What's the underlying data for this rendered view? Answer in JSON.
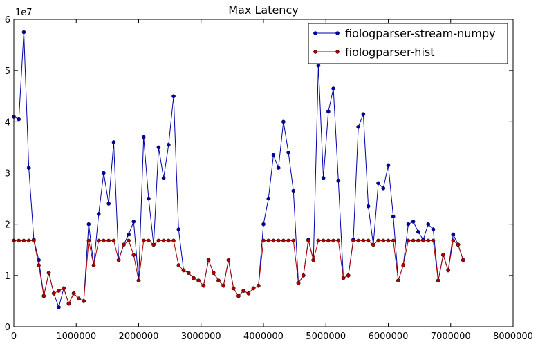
{
  "chart_data": {
    "type": "line",
    "title": "Max Latency",
    "xlabel": "",
    "ylabel": "",
    "xlim": [
      0,
      8000000
    ],
    "ylim": [
      0,
      60000000
    ],
    "x_ticks": [
      0,
      1000000,
      2000000,
      3000000,
      4000000,
      5000000,
      6000000,
      7000000,
      8000000
    ],
    "x_tick_labels": [
      "0",
      "1000000",
      "2000000",
      "3000000",
      "4000000",
      "5000000",
      "6000000",
      "7000000",
      "8000000"
    ],
    "y_ticks": [
      0,
      10000000,
      20000000,
      30000000,
      40000000,
      50000000,
      60000000
    ],
    "y_tick_labels": [
      "0",
      "1",
      "2",
      "3",
      "4",
      "5",
      "6"
    ],
    "y_offset_label": "1e7",
    "grid": false,
    "legend_position": "top-right",
    "series": [
      {
        "name": "fiologparser-stream-numpy",
        "color": "#0000aa",
        "x": [
          0,
          80000,
          160000,
          240000,
          320000,
          400000,
          480000,
          560000,
          640000,
          720000,
          800000,
          880000,
          960000,
          1040000,
          1120000,
          1200000,
          1280000,
          1360000,
          1440000,
          1520000,
          1600000,
          1680000,
          1760000,
          1840000,
          1920000,
          2000000,
          2080000,
          2160000,
          2240000,
          2320000,
          2400000,
          2480000,
          2560000,
          2640000,
          2720000,
          2800000,
          2880000,
          2960000,
          3040000,
          3120000,
          3200000,
          3280000,
          3360000,
          3440000,
          3520000,
          3600000,
          3680000,
          3760000,
          3840000,
          3920000,
          4000000,
          4080000,
          4160000,
          4240000,
          4320000,
          4400000,
          4480000,
          4560000,
          4640000,
          4720000,
          4800000,
          4880000,
          4960000,
          5040000,
          5120000,
          5200000,
          5280000,
          5360000,
          5440000,
          5520000,
          5600000,
          5680000,
          5760000,
          5840000,
          5920000,
          6000000,
          6080000,
          6160000,
          6240000,
          6320000,
          6400000,
          6480000,
          6560000,
          6640000,
          6720000,
          6800000,
          6880000,
          6960000,
          7040000,
          7120000,
          7200000
        ],
        "y": [
          41000000,
          40500000,
          57500000,
          31000000,
          17000000,
          13000000,
          6000000,
          10500000,
          6500000,
          3800000,
          7500000,
          4500000,
          6500000,
          5500000,
          5000000,
          20000000,
          12000000,
          22000000,
          30000000,
          24000000,
          36000000,
          13000000,
          16000000,
          18000000,
          20500000,
          9000000,
          37000000,
          25000000,
          16000000,
          35000000,
          29000000,
          35500000,
          45000000,
          19000000,
          11000000,
          10500000,
          9500000,
          9000000,
          8000000,
          13000000,
          10500000,
          9000000,
          8000000,
          13000000,
          7500000,
          6000000,
          7000000,
          6500000,
          7500000,
          8000000,
          20000000,
          25000000,
          33500000,
          31000000,
          40000000,
          34000000,
          26500000,
          8500000,
          10000000,
          17000000,
          13000000,
          51000000,
          29000000,
          42000000,
          46500000,
          28500000,
          9500000,
          10000000,
          17000000,
          39000000,
          41500000,
          23500000,
          16000000,
          28000000,
          27000000,
          31500000,
          21500000,
          9000000,
          12000000,
          20000000,
          20500000,
          18500000,
          17000000,
          20000000,
          19000000,
          9000000,
          14000000,
          11000000,
          18000000,
          16000000,
          13000000
        ]
      },
      {
        "name": "fiologparser-hist",
        "color": "#aa0000",
        "x": [
          0,
          80000,
          160000,
          240000,
          320000,
          400000,
          480000,
          560000,
          640000,
          720000,
          800000,
          880000,
          960000,
          1040000,
          1120000,
          1200000,
          1280000,
          1360000,
          1440000,
          1520000,
          1600000,
          1680000,
          1760000,
          1840000,
          1920000,
          2000000,
          2080000,
          2160000,
          2240000,
          2320000,
          2400000,
          2480000,
          2560000,
          2640000,
          2720000,
          2800000,
          2880000,
          2960000,
          3040000,
          3120000,
          3200000,
          3280000,
          3360000,
          3440000,
          3520000,
          3600000,
          3680000,
          3760000,
          3840000,
          3920000,
          4000000,
          4080000,
          4160000,
          4240000,
          4320000,
          4400000,
          4480000,
          4560000,
          4640000,
          4720000,
          4800000,
          4880000,
          4960000,
          5040000,
          5120000,
          5200000,
          5280000,
          5360000,
          5440000,
          5520000,
          5600000,
          5680000,
          5760000,
          5840000,
          5920000,
          6000000,
          6080000,
          6160000,
          6240000,
          6320000,
          6400000,
          6480000,
          6560000,
          6640000,
          6720000,
          6800000,
          6880000,
          6960000,
          7040000,
          7120000,
          7200000
        ],
        "y": [
          16800000,
          16800000,
          16800000,
          16800000,
          16800000,
          12000000,
          6000000,
          10500000,
          6500000,
          7000000,
          7500000,
          4500000,
          6500000,
          5500000,
          5000000,
          16800000,
          12000000,
          16800000,
          16800000,
          16800000,
          16800000,
          13000000,
          16000000,
          16800000,
          14000000,
          9000000,
          16800000,
          16800000,
          16000000,
          16800000,
          16800000,
          16800000,
          16800000,
          12000000,
          11000000,
          10500000,
          9500000,
          9000000,
          8000000,
          13000000,
          10500000,
          9000000,
          8000000,
          13000000,
          7500000,
          6000000,
          7000000,
          6500000,
          7500000,
          8000000,
          16800000,
          16800000,
          16800000,
          16800000,
          16800000,
          16800000,
          16800000,
          8500000,
          10000000,
          16800000,
          13000000,
          16800000,
          16800000,
          16800000,
          16800000,
          16800000,
          9500000,
          10000000,
          16800000,
          16800000,
          16800000,
          16800000,
          16000000,
          16800000,
          16800000,
          16800000,
          16800000,
          9000000,
          12000000,
          16800000,
          16800000,
          16800000,
          16800000,
          16800000,
          16800000,
          9000000,
          14000000,
          11000000,
          16800000,
          16000000,
          13000000
        ]
      }
    ]
  }
}
